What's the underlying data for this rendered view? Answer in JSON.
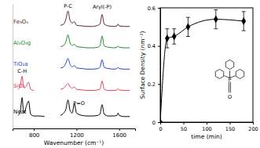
{
  "chart_data": [
    {
      "type": "line",
      "x_label": "Wavenumber (cm⁻¹)",
      "x": [
        650,
        670,
        690,
        700,
        710,
        730,
        750,
        770,
        800,
        850,
        900,
        975,
        1050,
        1080,
        1100,
        1120,
        1140,
        1160,
        1180,
        1200,
        1250,
        1300,
        1350,
        1400,
        1420,
        1440,
        1460,
        1500,
        1550,
        1580,
        1590,
        1600,
        1650,
        1700
      ],
      "xlim": [
        600,
        1750
      ],
      "xticks": [
        800,
        1200,
        1600
      ],
      "ylim": [
        0,
        10.5
      ],
      "tick_labels": "x",
      "series": [
        {
          "name": "Fe₃O₄",
          "color": "#5c1f33",
          "values": [
            null,
            null,
            null,
            null,
            null,
            null,
            null,
            null,
            null,
            null,
            null,
            null,
            8.7,
            8.8,
            9.2,
            9.9,
            9.1,
            8.9,
            9.0,
            8.7,
            8.65,
            8.6,
            8.6,
            8.7,
            8.8,
            9.6,
            8.8,
            8.65,
            8.6,
            8.65,
            8.8,
            8.65,
            8.6,
            8.6
          ]
        },
        {
          "name": "Al₂O₃g",
          "color": "#1f8a2a",
          "values": [
            null,
            null,
            null,
            null,
            null,
            null,
            null,
            null,
            null,
            null,
            null,
            null,
            6.9,
            7.0,
            7.3,
            7.9,
            7.2,
            7.0,
            7.1,
            6.9,
            6.85,
            6.8,
            6.8,
            6.85,
            6.95,
            7.8,
            6.95,
            6.85,
            6.8,
            6.85,
            6.95,
            6.85,
            6.8,
            6.8
          ]
        },
        {
          "name": "TiO₂a",
          "color": "#2b3fc4",
          "values": [
            null,
            null,
            null,
            null,
            null,
            null,
            null,
            null,
            null,
            null,
            null,
            null,
            5.1,
            5.2,
            5.5,
            5.9,
            5.4,
            5.2,
            5.3,
            5.1,
            5.05,
            5.0,
            5.0,
            5.05,
            5.15,
            5.8,
            5.15,
            5.05,
            5.0,
            5.05,
            5.15,
            5.05,
            5.0,
            5.0
          ]
        },
        {
          "name": "SiO₂",
          "color": "#e0435e",
          "values": [
            3.3,
            3.5,
            4.4,
            3.7,
            3.4,
            3.6,
            3.9,
            3.3,
            3.2,
            null,
            null,
            null,
            3.3,
            3.4,
            3.6,
            3.8,
            3.5,
            3.4,
            3.5,
            3.3,
            3.25,
            3.2,
            3.2,
            3.25,
            3.3,
            4.0,
            3.3,
            3.2,
            3.2,
            3.25,
            3.35,
            3.25,
            3.2,
            3.2
          ]
        },
        {
          "name": "Neat",
          "color": "#000000",
          "values": [
            1.1,
            1.3,
            2.6,
            1.6,
            1.3,
            1.9,
            2.3,
            1.2,
            1.05,
            1.05,
            1.0,
            null,
            1.1,
            1.3,
            1.6,
            2.4,
            1.5,
            1.3,
            2.1,
            1.3,
            1.1,
            1.05,
            1.05,
            1.1,
            1.2,
            2.0,
            1.2,
            1.05,
            1.05,
            1.1,
            1.3,
            1.1,
            1.0,
            1.0
          ]
        }
      ],
      "annotations": [
        {
          "text": "P-C",
          "x": 1120,
          "y": 10.2
        },
        {
          "text": "Aryl(-P)",
          "x": 1440,
          "y": 10.1
        },
        {
          "text": "C-H",
          "x": 690,
          "y": 4.7
        },
        {
          "text": "P=O",
          "x": 1170,
          "y": 2.0
        }
      ]
    },
    {
      "type": "line",
      "x_label": "time (min)",
      "y_label": "Surface Density (nm⁻²)",
      "x": [
        0,
        15,
        30,
        60,
        120,
        180
      ],
      "values": [
        0,
        0.44,
        0.45,
        0.5,
        0.54,
        0.53
      ],
      "errors": [
        0,
        0.05,
        0.04,
        0.05,
        0.05,
        0.05
      ],
      "color": "#000000",
      "marker": "diamond",
      "xlim": [
        0,
        200
      ],
      "xticks": [
        0,
        50,
        100,
        150,
        200
      ],
      "ylim": [
        0,
        0.6
      ],
      "yticks": [
        0,
        0.2,
        0.4,
        0.6
      ],
      "annotations": [
        {
          "text": "P",
          "x": 150,
          "y": 0.22
        },
        {
          "text": "O",
          "x": 150,
          "y": 0.13
        }
      ]
    }
  ]
}
